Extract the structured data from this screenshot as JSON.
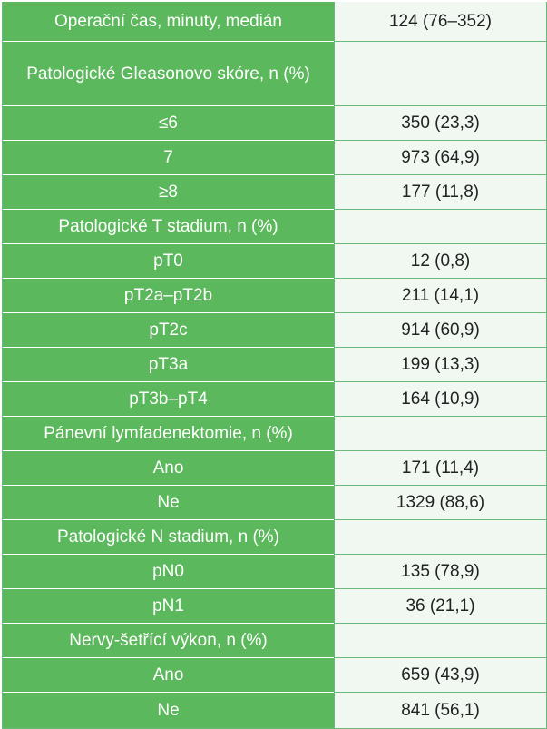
{
  "rows": [
    {
      "label": "Operační čas, minuty, medián",
      "value": "124 (76–352)"
    },
    {
      "label": "Patologické Gleasonovo skóre, n (%)",
      "value": ""
    },
    {
      "label": "≤6",
      "value": "350 (23,3)"
    },
    {
      "label": "7",
      "value": "973 (64,9)"
    },
    {
      "label": "≥8",
      "value": "177 (11,8)"
    },
    {
      "label": "Patologické T stadium, n (%)",
      "value": ""
    },
    {
      "label": "pT0",
      "value": "12 (0,8)"
    },
    {
      "label": "pT2a–pT2b",
      "value": "211 (14,1)"
    },
    {
      "label": "pT2c",
      "value": "914 (60,9)"
    },
    {
      "label": "pT3a",
      "value": "199 (13,3)"
    },
    {
      "label": "pT3b–pT4",
      "value": "164 (10,9)"
    },
    {
      "label": "Pánevní lymfadenektomie, n (%)",
      "value": ""
    },
    {
      "label": "Ano",
      "value": "171 (11,4)"
    },
    {
      "label": "Ne",
      "value": "1329 (88,6)"
    },
    {
      "label": "Patologické N stadium, n (%)",
      "value": ""
    },
    {
      "label": "pN0",
      "value": "135 (78,9)"
    },
    {
      "label": "pN1",
      "value": "36 (21,1)"
    },
    {
      "label": "Nervy-šetřící výkon, n (%)",
      "value": ""
    },
    {
      "label": "Ano",
      "value": "659 (43,9)"
    },
    {
      "label": "Ne",
      "value": "841 (56,1)"
    }
  ]
}
